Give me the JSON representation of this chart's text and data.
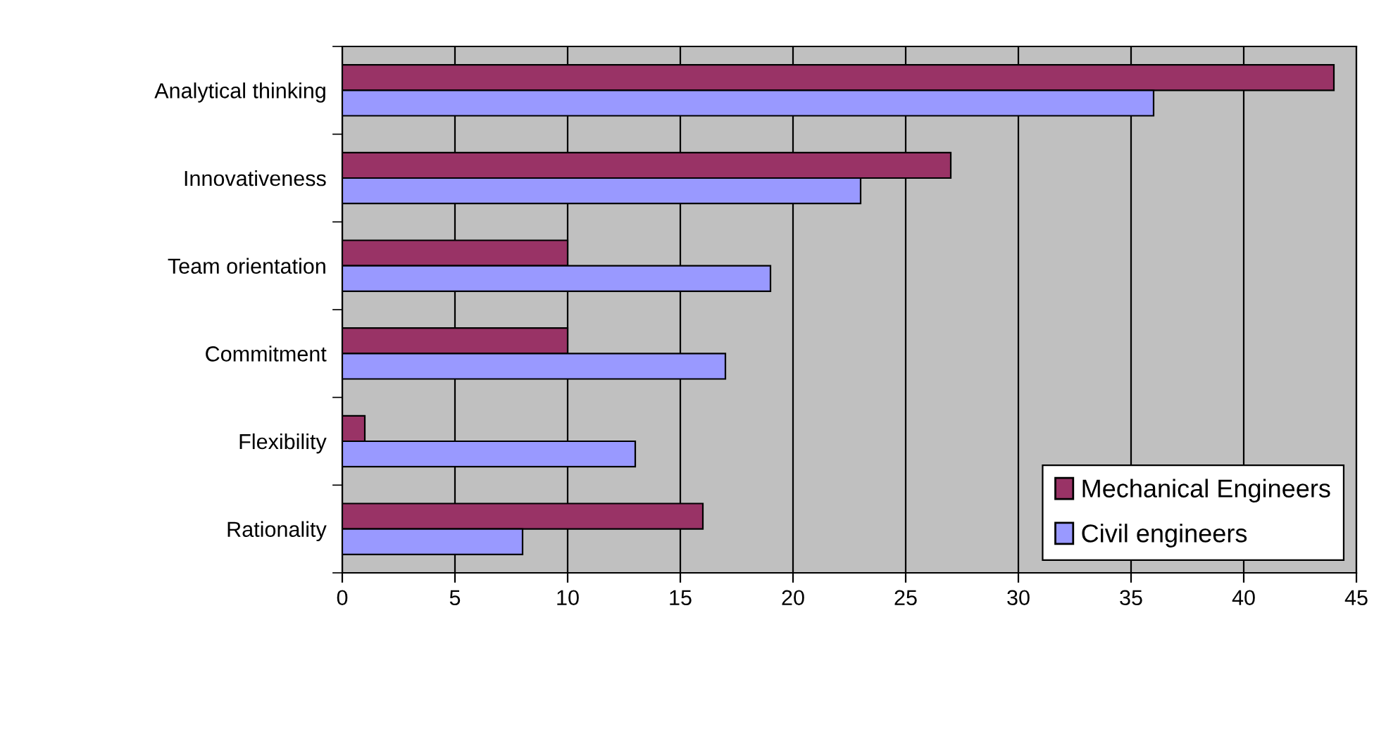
{
  "chart_data": {
    "type": "bar",
    "orientation": "horizontal",
    "categories": [
      "Analytical thinking",
      "Innovativeness",
      "Team orientation",
      "Commitment",
      "Flexibility",
      "Rationality"
    ],
    "series": [
      {
        "name": "Mechanical Engineers",
        "color": "#993366",
        "values": [
          44,
          27,
          10,
          10,
          1,
          16
        ]
      },
      {
        "name": "Civil engineers",
        "color": "#9999ff",
        "values": [
          36,
          23,
          19,
          17,
          13,
          8
        ]
      }
    ],
    "xlim": [
      0,
      45
    ],
    "xticks": [
      0,
      5,
      10,
      15,
      20,
      25,
      30,
      35,
      40,
      45
    ],
    "grid": "x",
    "legend": "bottom right"
  }
}
